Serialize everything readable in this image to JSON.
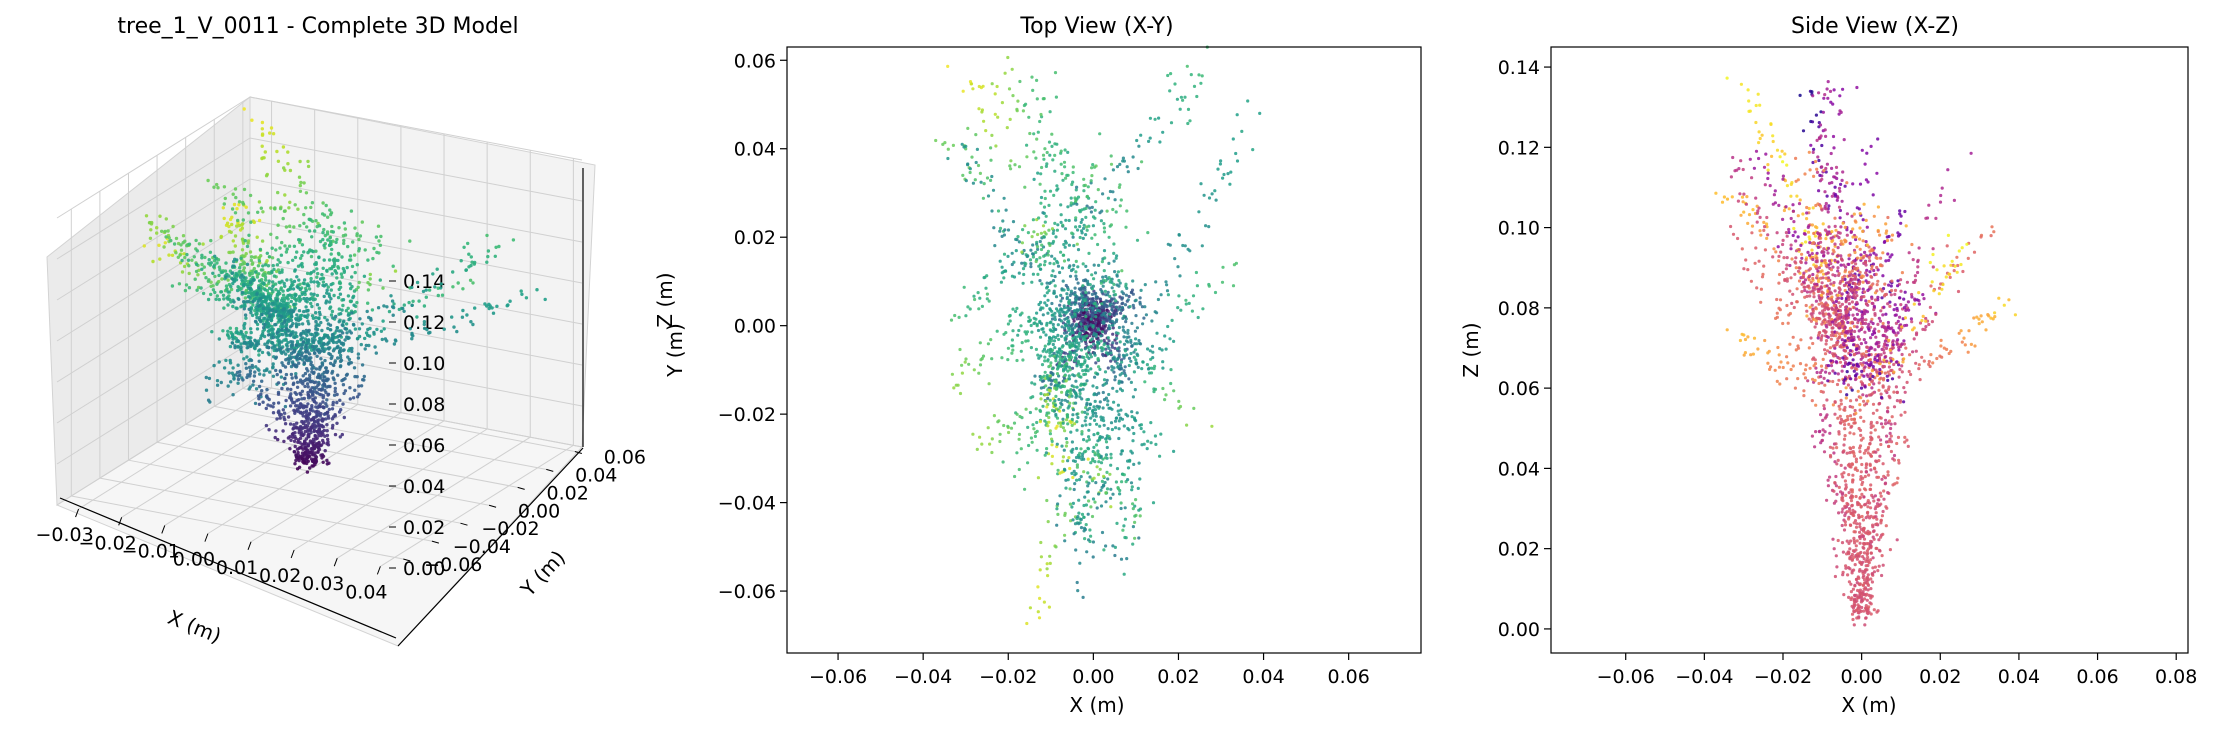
{
  "chart_data": [
    {
      "type": "scatter",
      "projection": "3d",
      "title": "tree_1_V_0011 - Complete 3D Model",
      "xlabel": "X (m)",
      "ylabel": "Y (m)",
      "zlabel": "Z (m)",
      "xticks": [
        "−0.03",
        "−0.02",
        "−0.01",
        "0.00",
        "0.01",
        "0.02",
        "0.03",
        "0.04"
      ],
      "yticks": [
        "−0.06",
        "−0.04",
        "−0.02",
        "0.00",
        "0.02",
        "0.04",
        "0.06"
      ],
      "zticks": [
        "0.00",
        "0.02",
        "0.04",
        "0.06",
        "0.08",
        "0.10",
        "0.12",
        "0.14"
      ],
      "xlim": [
        -0.035,
        0.042
      ],
      "ylim": [
        -0.07,
        0.065
      ],
      "zlim": [
        0.0,
        0.14
      ],
      "grid": true,
      "colormap": "viridis",
      "color_by": "Z (m)"
    },
    {
      "type": "scatter",
      "title": "Top View (X-Y)",
      "xlabel": "X (m)",
      "ylabel": "Y (m)",
      "xticks": [
        "−0.06",
        "−0.04",
        "−0.02",
        "0.00",
        "0.02",
        "0.04",
        "0.06"
      ],
      "yticks": [
        "−0.06",
        "−0.04",
        "−0.02",
        "0.00",
        "0.02",
        "0.04",
        "0.06"
      ],
      "xlim": [
        -0.072,
        0.077
      ],
      "ylim": [
        -0.074,
        0.063
      ],
      "grid": false,
      "colormap": "viridis",
      "color_by": "Z (m)"
    },
    {
      "type": "scatter",
      "title": "Side View (X-Z)",
      "xlabel": "X (m)",
      "ylabel": "Z (m)",
      "xticks": [
        "−0.06",
        "−0.04",
        "−0.02",
        "0.00",
        "0.02",
        "0.04",
        "0.06",
        "0.08"
      ],
      "yticks": [
        "0.00",
        "0.02",
        "0.04",
        "0.06",
        "0.08",
        "0.10",
        "0.12",
        "0.14"
      ],
      "xlim": [
        -0.079,
        0.083
      ],
      "ylim": [
        -0.006,
        0.145
      ],
      "grid": false,
      "colormap": "plasma",
      "color_by": "Y (m)"
    }
  ]
}
